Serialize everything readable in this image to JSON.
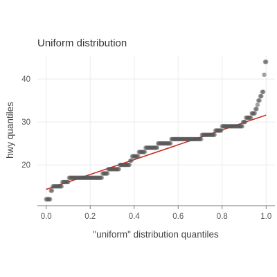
{
  "chart_data": {
    "type": "scatter",
    "title": "Uniform distribution",
    "xlabel": "\"uniform\" distribution quantiles",
    "ylabel": "hwy quantiles",
    "xlim": [
      -0.04,
      1.04
    ],
    "ylim": [
      10.5,
      45.5
    ],
    "x_ticks": [
      {
        "value": 0.0,
        "label": "0.0"
      },
      {
        "value": 0.2,
        "label": "0.2"
      },
      {
        "value": 0.4,
        "label": "0.4"
      },
      {
        "value": 0.6,
        "label": "0.6"
      },
      {
        "value": 0.8,
        "label": "0.8"
      },
      {
        "value": 1.0,
        "label": "1.0"
      }
    ],
    "y_ticks": [
      {
        "value": 20,
        "label": "20"
      },
      {
        "value": 30,
        "label": "30"
      },
      {
        "value": 40,
        "label": "40"
      }
    ],
    "grid": true,
    "colors": {
      "points": "#555555",
      "reference_line": "#c62a1e",
      "grid": "#ebebeb"
    },
    "sample_size": 234,
    "sorted_values": [
      12,
      12,
      12,
      12,
      12,
      14,
      14,
      15,
      15,
      15,
      15,
      15,
      15,
      15,
      15,
      15,
      15,
      16,
      16,
      16,
      16,
      16,
      16,
      16,
      17,
      17,
      17,
      17,
      17,
      17,
      17,
      17,
      17,
      17,
      17,
      17,
      17,
      17,
      17,
      17,
      17,
      17,
      17,
      17,
      17,
      17,
      17,
      17,
      17,
      17,
      17,
      17,
      17,
      17,
      17,
      17,
      17,
      17,
      17,
      18,
      18,
      18,
      18,
      18,
      18,
      19,
      19,
      19,
      19,
      19,
      19,
      19,
      19,
      19,
      19,
      19,
      19,
      20,
      20,
      20,
      20,
      20,
      20,
      20,
      20,
      20,
      20,
      20,
      21,
      21,
      22,
      22,
      22,
      22,
      22,
      22,
      22,
      23,
      23,
      23,
      23,
      23,
      23,
      23,
      24,
      24,
      24,
      24,
      24,
      24,
      24,
      24,
      24,
      24,
      24,
      24,
      24,
      25,
      25,
      25,
      25,
      25,
      25,
      25,
      25,
      25,
      25,
      25,
      25,
      25,
      25,
      26,
      26,
      26,
      26,
      26,
      26,
      26,
      26,
      26,
      26,
      26,
      26,
      26,
      26,
      26,
      26,
      26,
      26,
      26,
      26,
      26,
      26,
      26,
      26,
      26,
      26,
      26,
      26,
      26,
      26,
      26,
      26,
      27,
      27,
      27,
      27,
      27,
      27,
      27,
      27,
      27,
      27,
      27,
      27,
      27,
      27,
      28,
      28,
      28,
      28,
      28,
      28,
      28,
      29,
      29,
      29,
      29,
      29,
      29,
      29,
      29,
      29,
      29,
      29,
      29,
      29,
      29,
      29,
      29,
      29,
      29,
      29,
      29,
      29,
      29,
      30,
      30,
      30,
      31,
      31,
      31,
      31,
      31,
      31,
      32,
      32,
      32,
      32,
      33,
      33,
      34,
      35,
      35,
      36,
      36,
      37,
      37,
      41,
      44,
      44
    ],
    "reference_line": {
      "x": [
        0.0,
        1.0
      ],
      "y": [
        14.3,
        31.6
      ]
    }
  }
}
